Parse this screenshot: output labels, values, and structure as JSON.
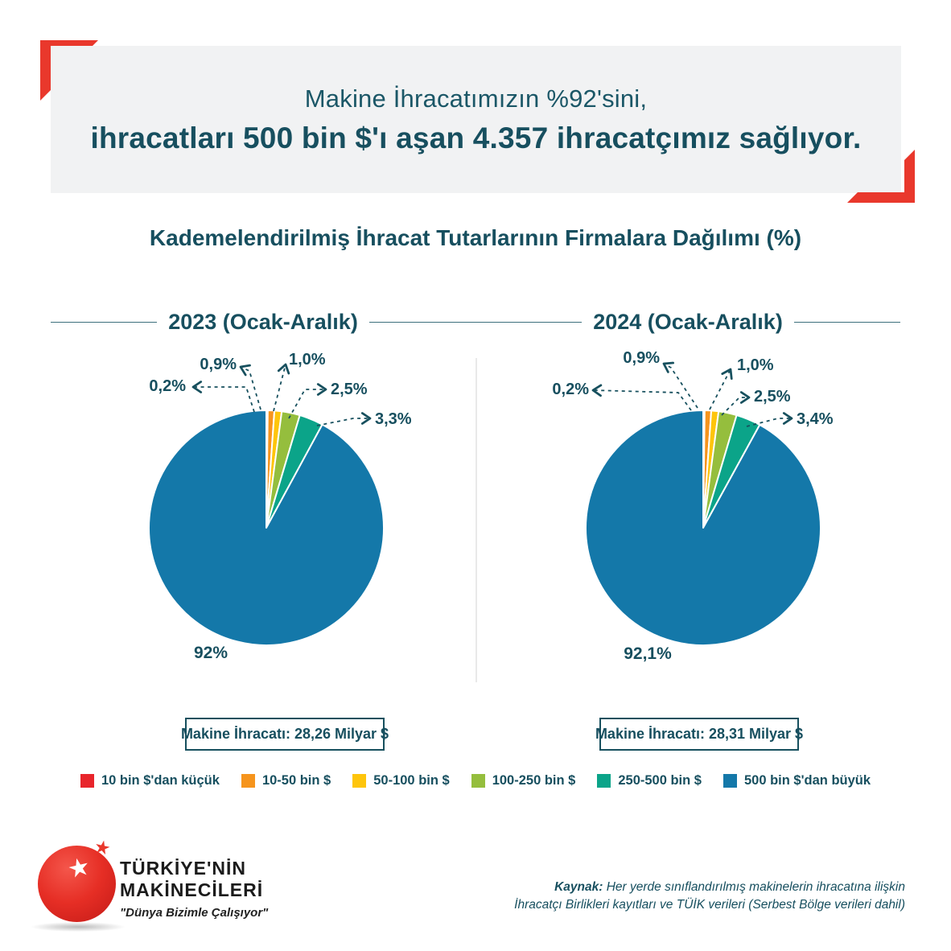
{
  "header": {
    "line1": "Makine İhracatımızın %92'sini,",
    "line2": "ihracatları 500 bin $'ı aşan 4.357 ihracatçımız sağlıyor."
  },
  "subtitle": "Kademelendirilmiş İhracat Tutarlarının Firmalara Dağılımı (%)",
  "chart_data": [
    {
      "type": "pie",
      "title": "2023 (Ocak-Aralık)",
      "note": "Makine İhracatı: 28,26 Milyar $",
      "slices": [
        {
          "label": "10 bin $'dan küçük",
          "value": 0.2,
          "display": "0,2%",
          "color": "#e8252b"
        },
        {
          "label": "10-50 bin $",
          "value": 0.9,
          "display": "0,9%",
          "color": "#f6941d"
        },
        {
          "label": "50-100 bin $",
          "value": 1.0,
          "display": "1,0%",
          "color": "#fec50b"
        },
        {
          "label": "100-250 bin $",
          "value": 2.5,
          "display": "2,5%",
          "color": "#95be3d"
        },
        {
          "label": "250-500 bin $",
          "value": 3.3,
          "display": "3,3%",
          "color": "#0ba489"
        },
        {
          "label": "500 bin $'dan büyük",
          "value": 92.0,
          "display": "92%",
          "color": "#1478a9"
        }
      ]
    },
    {
      "type": "pie",
      "title": "2024 (Ocak-Aralık)",
      "note": "Makine İhracatı: 28,31 Milyar $",
      "slices": [
        {
          "label": "10 bin $'dan küçük",
          "value": 0.2,
          "display": "0,2%",
          "color": "#e8252b"
        },
        {
          "label": "10-50 bin $",
          "value": 0.9,
          "display": "0,9%",
          "color": "#f6941d"
        },
        {
          "label": "50-100 bin $",
          "value": 1.0,
          "display": "1,0%",
          "color": "#fec50b"
        },
        {
          "label": "100-250 bin $",
          "value": 2.5,
          "display": "2,5%",
          "color": "#95be3d"
        },
        {
          "label": "250-500 bin $",
          "value": 3.4,
          "display": "3,4%",
          "color": "#0ba489"
        },
        {
          "label": "500 bin $'dan büyük",
          "value": 92.1,
          "display": "92,1%",
          "color": "#1478a9"
        }
      ]
    }
  ],
  "legend": [
    {
      "label": "10 bin $'dan küçük",
      "color": "#e8252b"
    },
    {
      "label": "10-50 bin $",
      "color": "#f6941d"
    },
    {
      "label": "50-100 bin $",
      "color": "#fec50b"
    },
    {
      "label": "100-250 bin $",
      "color": "#95be3d"
    },
    {
      "label": "250-500 bin $",
      "color": "#0ba489"
    },
    {
      "label": "500 bin $'dan büyük",
      "color": "#1478a9"
    }
  ],
  "logo": {
    "line1": "TÜRKİYE'NİN",
    "line2": "MAKİNECİLERİ",
    "slogan": "\"Dünya Bizimle Çalışıyor\""
  },
  "source": {
    "label": "Kaynak:",
    "line1": "Her yerde sınıflandırılmış makinelerin ihracatına ilişkin",
    "line2": "İhracatçı Birlikleri kayıtları ve TÜİK verileri (Serbest Bölge verileri dahil)"
  },
  "colors": {
    "accent_red": "#e9382c",
    "text_teal": "#174f5f",
    "panel_gray": "#f1f2f3"
  }
}
